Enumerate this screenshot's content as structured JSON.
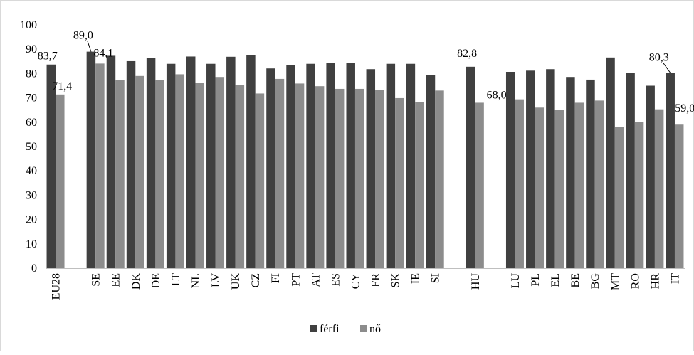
{
  "chart_data": {
    "type": "bar",
    "title": "",
    "xlabel": "",
    "ylabel": "",
    "ylim": [
      0,
      100
    ],
    "yticks": [
      0,
      10,
      20,
      30,
      40,
      50,
      60,
      70,
      80,
      90,
      100
    ],
    "grid": false,
    "legend_position": "bottom",
    "categories": [
      "EU28",
      "",
      "SE",
      "EE",
      "DK",
      "DE",
      "LT",
      "NL",
      "LV",
      "UK",
      "CZ",
      "FI",
      "PT",
      "AT",
      "ES",
      "CY",
      "FR",
      "SK",
      "IE",
      "SI",
      "",
      "HU",
      "",
      "LU",
      "PL",
      "EL",
      "BE",
      "BG",
      "MT",
      "RO",
      "HR",
      "IT"
    ],
    "series": [
      {
        "name": "férfi",
        "color": "#404040",
        "values": [
          83.7,
          null,
          89.0,
          87.3,
          85.1,
          86.4,
          84.0,
          87.0,
          84.0,
          86.9,
          87.5,
          82.1,
          83.4,
          84.0,
          84.5,
          84.5,
          81.8,
          84.0,
          84.0,
          79.4,
          null,
          82.8,
          null,
          80.7,
          81.2,
          81.8,
          78.6,
          77.5,
          86.6,
          80.2,
          75.0,
          80.3
        ]
      },
      {
        "name": "nő",
        "color": "#8c8c8c",
        "values": [
          71.4,
          null,
          84.1,
          77.2,
          79.0,
          77.2,
          79.7,
          76.1,
          78.6,
          75.3,
          71.8,
          77.8,
          75.9,
          74.8,
          73.7,
          73.7,
          73.2,
          69.9,
          68.3,
          73.0,
          null,
          68.0,
          null,
          69.4,
          66.0,
          65.1,
          68.0,
          68.9,
          58.0,
          60.0,
          65.3,
          59.0
        ]
      }
    ],
    "data_labels": [
      {
        "category": "EU28",
        "series": "férfi",
        "text": "83,7"
      },
      {
        "category": "EU28",
        "series": "nő",
        "text": "71,4"
      },
      {
        "category": "SE",
        "series": "férfi",
        "text": "89,0"
      },
      {
        "category": "SE",
        "series": "nő",
        "text": "84,1"
      },
      {
        "category": "HU",
        "series": "férfi",
        "text": "82,8"
      },
      {
        "category": "HU",
        "series": "nő",
        "text": "68,0"
      },
      {
        "category": "IT",
        "series": "férfi",
        "text": "80,3"
      },
      {
        "category": "IT",
        "series": "nő",
        "text": "59,0"
      }
    ]
  }
}
